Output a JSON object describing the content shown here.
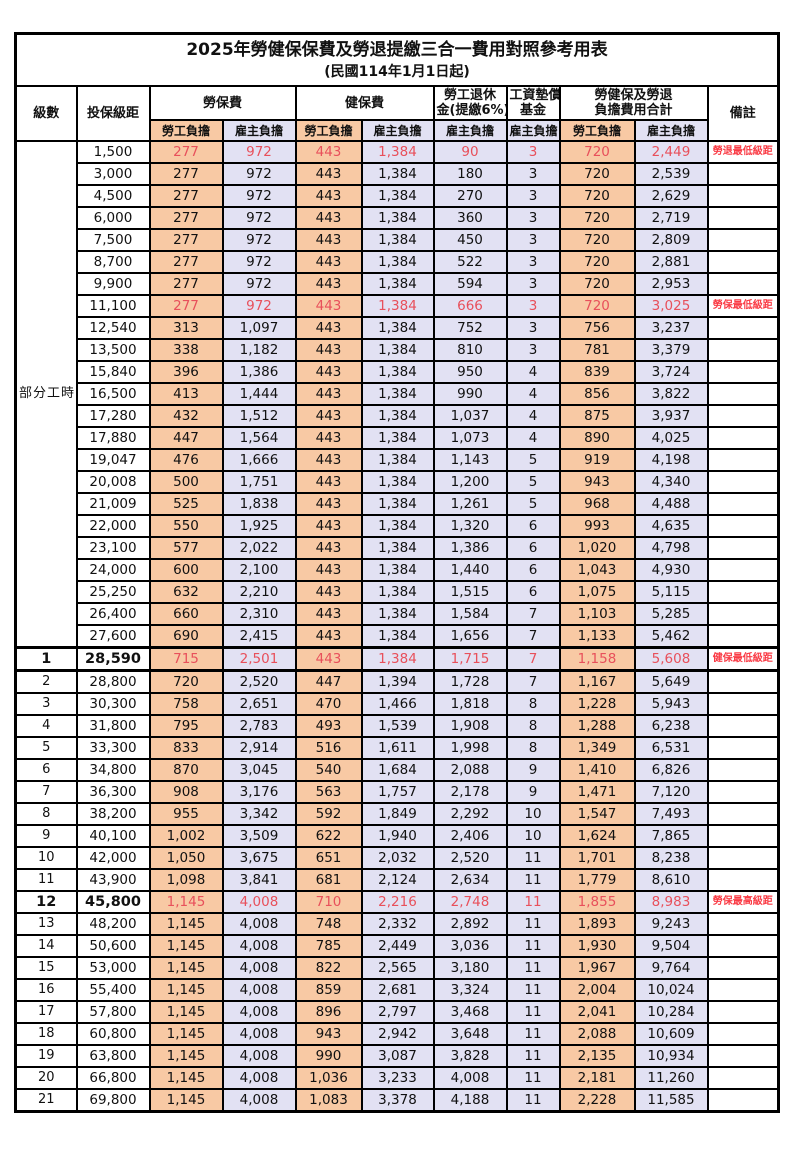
{
  "title": "2025年勞健保保費及勞退提繳三合一費用對照參考用表",
  "subtitle": "(民國114年1月1日起)",
  "header": {
    "level": "級數",
    "bracket": "投保級距",
    "labor": "勞保費",
    "health": "健保費",
    "pension_l1": "勞工退休",
    "pension_l2": "金(提繳6%)",
    "wagefund_l1": "工資墊償",
    "wagefund_l2": "基金",
    "total_l1": "勞健保及勞退",
    "total_l2": "負擔費用合計",
    "remark": "備註",
    "employee": "勞工負擔",
    "employer": "雇主負擔"
  },
  "part_time_label": "部分工時",
  "part_time_rowspan": 23,
  "colors": {
    "employee_bg": "#f8c9a4",
    "employer_bg": "#e2e1f3",
    "highlight_red": "#e8505b",
    "remark_red": "#fa3b45",
    "border": "#000000"
  },
  "rows": [
    {
      "level": "",
      "bracket": "1,500",
      "cells": [
        "277",
        "972",
        "443",
        "1,384",
        "90",
        "3",
        "720",
        "2,449"
      ],
      "remark": "勞退最低級距",
      "red": true,
      "bold": false,
      "sep": false
    },
    {
      "level": "",
      "bracket": "3,000",
      "cells": [
        "277",
        "972",
        "443",
        "1,384",
        "180",
        "3",
        "720",
        "2,539"
      ],
      "remark": "",
      "red": false,
      "bold": false,
      "sep": false
    },
    {
      "level": "",
      "bracket": "4,500",
      "cells": [
        "277",
        "972",
        "443",
        "1,384",
        "270",
        "3",
        "720",
        "2,629"
      ],
      "remark": "",
      "red": false,
      "bold": false,
      "sep": false
    },
    {
      "level": "",
      "bracket": "6,000",
      "cells": [
        "277",
        "972",
        "443",
        "1,384",
        "360",
        "3",
        "720",
        "2,719"
      ],
      "remark": "",
      "red": false,
      "bold": false,
      "sep": false
    },
    {
      "level": "",
      "bracket": "7,500",
      "cells": [
        "277",
        "972",
        "443",
        "1,384",
        "450",
        "3",
        "720",
        "2,809"
      ],
      "remark": "",
      "red": false,
      "bold": false,
      "sep": false
    },
    {
      "level": "",
      "bracket": "8,700",
      "cells": [
        "277",
        "972",
        "443",
        "1,384",
        "522",
        "3",
        "720",
        "2,881"
      ],
      "remark": "",
      "red": false,
      "bold": false,
      "sep": false
    },
    {
      "level": "",
      "bracket": "9,900",
      "cells": [
        "277",
        "972",
        "443",
        "1,384",
        "594",
        "3",
        "720",
        "2,953"
      ],
      "remark": "",
      "red": false,
      "bold": false,
      "sep": false
    },
    {
      "level": "",
      "bracket": "11,100",
      "cells": [
        "277",
        "972",
        "443",
        "1,384",
        "666",
        "3",
        "720",
        "3,025"
      ],
      "remark": "勞保最低級距",
      "red": true,
      "bold": false,
      "sep": false
    },
    {
      "level": "",
      "bracket": "12,540",
      "cells": [
        "313",
        "1,097",
        "443",
        "1,384",
        "752",
        "3",
        "756",
        "3,237"
      ],
      "remark": "",
      "red": false,
      "bold": false,
      "sep": false
    },
    {
      "level": "",
      "bracket": "13,500",
      "cells": [
        "338",
        "1,182",
        "443",
        "1,384",
        "810",
        "3",
        "781",
        "3,379"
      ],
      "remark": "",
      "red": false,
      "bold": false,
      "sep": false
    },
    {
      "level": "",
      "bracket": "15,840",
      "cells": [
        "396",
        "1,386",
        "443",
        "1,384",
        "950",
        "4",
        "839",
        "3,724"
      ],
      "remark": "",
      "red": false,
      "bold": false,
      "sep": false
    },
    {
      "level": "",
      "bracket": "16,500",
      "cells": [
        "413",
        "1,444",
        "443",
        "1,384",
        "990",
        "4",
        "856",
        "3,822"
      ],
      "remark": "",
      "red": false,
      "bold": false,
      "sep": false
    },
    {
      "level": "",
      "bracket": "17,280",
      "cells": [
        "432",
        "1,512",
        "443",
        "1,384",
        "1,037",
        "4",
        "875",
        "3,937"
      ],
      "remark": "",
      "red": false,
      "bold": false,
      "sep": false
    },
    {
      "level": "",
      "bracket": "17,880",
      "cells": [
        "447",
        "1,564",
        "443",
        "1,384",
        "1,073",
        "4",
        "890",
        "4,025"
      ],
      "remark": "",
      "red": false,
      "bold": false,
      "sep": false
    },
    {
      "level": "",
      "bracket": "19,047",
      "cells": [
        "476",
        "1,666",
        "443",
        "1,384",
        "1,143",
        "5",
        "919",
        "4,198"
      ],
      "remark": "",
      "red": false,
      "bold": false,
      "sep": false
    },
    {
      "level": "",
      "bracket": "20,008",
      "cells": [
        "500",
        "1,751",
        "443",
        "1,384",
        "1,200",
        "5",
        "943",
        "4,340"
      ],
      "remark": "",
      "red": false,
      "bold": false,
      "sep": false
    },
    {
      "level": "",
      "bracket": "21,009",
      "cells": [
        "525",
        "1,838",
        "443",
        "1,384",
        "1,261",
        "5",
        "968",
        "4,488"
      ],
      "remark": "",
      "red": false,
      "bold": false,
      "sep": false
    },
    {
      "level": "",
      "bracket": "22,000",
      "cells": [
        "550",
        "1,925",
        "443",
        "1,384",
        "1,320",
        "6",
        "993",
        "4,635"
      ],
      "remark": "",
      "red": false,
      "bold": false,
      "sep": false
    },
    {
      "level": "",
      "bracket": "23,100",
      "cells": [
        "577",
        "2,022",
        "443",
        "1,384",
        "1,386",
        "6",
        "1,020",
        "4,798"
      ],
      "remark": "",
      "red": false,
      "bold": false,
      "sep": false
    },
    {
      "level": "",
      "bracket": "24,000",
      "cells": [
        "600",
        "2,100",
        "443",
        "1,384",
        "1,440",
        "6",
        "1,043",
        "4,930"
      ],
      "remark": "",
      "red": false,
      "bold": false,
      "sep": false
    },
    {
      "level": "",
      "bracket": "25,250",
      "cells": [
        "632",
        "2,210",
        "443",
        "1,384",
        "1,515",
        "6",
        "1,075",
        "5,115"
      ],
      "remark": "",
      "red": false,
      "bold": false,
      "sep": false
    },
    {
      "level": "",
      "bracket": "26,400",
      "cells": [
        "660",
        "2,310",
        "443",
        "1,384",
        "1,584",
        "7",
        "1,103",
        "5,285"
      ],
      "remark": "",
      "red": false,
      "bold": false,
      "sep": false
    },
    {
      "level": "",
      "bracket": "27,600",
      "cells": [
        "690",
        "2,415",
        "443",
        "1,384",
        "1,656",
        "7",
        "1,133",
        "5,462"
      ],
      "remark": "",
      "red": false,
      "bold": false,
      "sep": false
    },
    {
      "level": "1",
      "bracket": "28,590",
      "cells": [
        "715",
        "2,501",
        "443",
        "1,384",
        "1,715",
        "7",
        "1,158",
        "5,608"
      ],
      "remark": "健保最低級距",
      "red": true,
      "bold": true,
      "sep": true
    },
    {
      "level": "2",
      "bracket": "28,800",
      "cells": [
        "720",
        "2,520",
        "447",
        "1,394",
        "1,728",
        "7",
        "1,167",
        "5,649"
      ],
      "remark": "",
      "red": false,
      "bold": false,
      "sep": false
    },
    {
      "level": "3",
      "bracket": "30,300",
      "cells": [
        "758",
        "2,651",
        "470",
        "1,466",
        "1,818",
        "8",
        "1,228",
        "5,943"
      ],
      "remark": "",
      "red": false,
      "bold": false,
      "sep": false
    },
    {
      "level": "4",
      "bracket": "31,800",
      "cells": [
        "795",
        "2,783",
        "493",
        "1,539",
        "1,908",
        "8",
        "1,288",
        "6,238"
      ],
      "remark": "",
      "red": false,
      "bold": false,
      "sep": false
    },
    {
      "level": "5",
      "bracket": "33,300",
      "cells": [
        "833",
        "2,914",
        "516",
        "1,611",
        "1,998",
        "8",
        "1,349",
        "6,531"
      ],
      "remark": "",
      "red": false,
      "bold": false,
      "sep": false
    },
    {
      "level": "6",
      "bracket": "34,800",
      "cells": [
        "870",
        "3,045",
        "540",
        "1,684",
        "2,088",
        "9",
        "1,410",
        "6,826"
      ],
      "remark": "",
      "red": false,
      "bold": false,
      "sep": false
    },
    {
      "level": "7",
      "bracket": "36,300",
      "cells": [
        "908",
        "3,176",
        "563",
        "1,757",
        "2,178",
        "9",
        "1,471",
        "7,120"
      ],
      "remark": "",
      "red": false,
      "bold": false,
      "sep": false
    },
    {
      "level": "8",
      "bracket": "38,200",
      "cells": [
        "955",
        "3,342",
        "592",
        "1,849",
        "2,292",
        "10",
        "1,547",
        "7,493"
      ],
      "remark": "",
      "red": false,
      "bold": false,
      "sep": false
    },
    {
      "level": "9",
      "bracket": "40,100",
      "cells": [
        "1,002",
        "3,509",
        "622",
        "1,940",
        "2,406",
        "10",
        "1,624",
        "7,865"
      ],
      "remark": "",
      "red": false,
      "bold": false,
      "sep": false
    },
    {
      "level": "10",
      "bracket": "42,000",
      "cells": [
        "1,050",
        "3,675",
        "651",
        "2,032",
        "2,520",
        "11",
        "1,701",
        "8,238"
      ],
      "remark": "",
      "red": false,
      "bold": false,
      "sep": false
    },
    {
      "level": "11",
      "bracket": "43,900",
      "cells": [
        "1,098",
        "3,841",
        "681",
        "2,124",
        "2,634",
        "11",
        "1,779",
        "8,610"
      ],
      "remark": "",
      "red": false,
      "bold": false,
      "sep": false
    },
    {
      "level": "12",
      "bracket": "45,800",
      "cells": [
        "1,145",
        "4,008",
        "710",
        "2,216",
        "2,748",
        "11",
        "1,855",
        "8,983"
      ],
      "remark": "勞保最高級距",
      "red": true,
      "bold": true,
      "sep": false
    },
    {
      "level": "13",
      "bracket": "48,200",
      "cells": [
        "1,145",
        "4,008",
        "748",
        "2,332",
        "2,892",
        "11",
        "1,893",
        "9,243"
      ],
      "remark": "",
      "red": false,
      "bold": false,
      "sep": false
    },
    {
      "level": "14",
      "bracket": "50,600",
      "cells": [
        "1,145",
        "4,008",
        "785",
        "2,449",
        "3,036",
        "11",
        "1,930",
        "9,504"
      ],
      "remark": "",
      "red": false,
      "bold": false,
      "sep": false
    },
    {
      "level": "15",
      "bracket": "53,000",
      "cells": [
        "1,145",
        "4,008",
        "822",
        "2,565",
        "3,180",
        "11",
        "1,967",
        "9,764"
      ],
      "remark": "",
      "red": false,
      "bold": false,
      "sep": false
    },
    {
      "level": "16",
      "bracket": "55,400",
      "cells": [
        "1,145",
        "4,008",
        "859",
        "2,681",
        "3,324",
        "11",
        "2,004",
        "10,024"
      ],
      "remark": "",
      "red": false,
      "bold": false,
      "sep": false
    },
    {
      "level": "17",
      "bracket": "57,800",
      "cells": [
        "1,145",
        "4,008",
        "896",
        "2,797",
        "3,468",
        "11",
        "2,041",
        "10,284"
      ],
      "remark": "",
      "red": false,
      "bold": false,
      "sep": false
    },
    {
      "level": "18",
      "bracket": "60,800",
      "cells": [
        "1,145",
        "4,008",
        "943",
        "2,942",
        "3,648",
        "11",
        "2,088",
        "10,609"
      ],
      "remark": "",
      "red": false,
      "bold": false,
      "sep": false
    },
    {
      "level": "19",
      "bracket": "63,800",
      "cells": [
        "1,145",
        "4,008",
        "990",
        "3,087",
        "3,828",
        "11",
        "2,135",
        "10,934"
      ],
      "remark": "",
      "red": false,
      "bold": false,
      "sep": false
    },
    {
      "level": "20",
      "bracket": "66,800",
      "cells": [
        "1,145",
        "4,008",
        "1,036",
        "3,233",
        "4,008",
        "11",
        "2,181",
        "11,260"
      ],
      "remark": "",
      "red": false,
      "bold": false,
      "sep": false
    },
    {
      "level": "21",
      "bracket": "69,800",
      "cells": [
        "1,145",
        "4,008",
        "1,083",
        "3,378",
        "4,188",
        "11",
        "2,228",
        "11,585"
      ],
      "remark": "",
      "red": false,
      "bold": false,
      "sep": false
    }
  ]
}
